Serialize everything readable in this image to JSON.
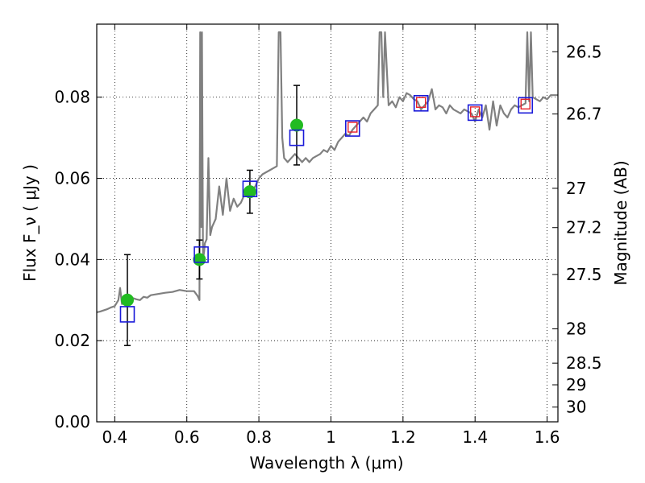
{
  "chart_data": {
    "type": "scatter",
    "xlabel": "Wavelength λ (μm)",
    "ylabel": "Flux F_ν ( μJy )",
    "ylabel_right": "Magnitude (AB)",
    "xlim": [
      0.35,
      1.63
    ],
    "ylim": [
      0.0,
      0.098
    ],
    "grid": true,
    "x_ticks": [
      0.4,
      0.6,
      0.8,
      1.0,
      1.2,
      1.4,
      1.6
    ],
    "x_tick_labels": [
      "0.4",
      "0.6",
      "0.8",
      "1",
      "1.2",
      "1.4",
      "1.6"
    ],
    "y_ticks": [
      0.0,
      0.02,
      0.04,
      0.06,
      0.08
    ],
    "y_tick_labels": [
      "0.00",
      "0.02",
      "0.04",
      "0.06",
      "0.08"
    ],
    "mag_ticks": [
      26.5,
      26.7,
      27,
      27.2,
      27.5,
      28,
      28.5,
      29,
      30
    ],
    "mag_tick_labels": [
      "26.5",
      "26.7",
      "27",
      "27.2",
      "27.5",
      "28",
      "28.5",
      "29",
      "30"
    ],
    "series": [
      {
        "kind": "observed",
        "marker": "circle",
        "color": "#22bb22",
        "x": [
          0.435,
          0.635,
          0.775,
          0.905
        ],
        "y": [
          0.03,
          0.04,
          0.0567,
          0.0731
        ],
        "yerr": [
          0.0112,
          0.0048,
          0.0053,
          0.0098
        ]
      },
      {
        "kind": "model_photometry",
        "marker": "open-square",
        "color": "#1a1ad9",
        "x": [
          0.435,
          0.64,
          0.775,
          0.905,
          1.06,
          1.25,
          1.4,
          1.54
        ],
        "y": [
          0.0265,
          0.0412,
          0.0574,
          0.07,
          0.0723,
          0.0785,
          0.0762,
          0.078
        ]
      },
      {
        "kind": "model_photometry_nir",
        "marker": "open-square-small",
        "color": "#e8202a",
        "x": [
          1.06,
          1.25,
          1.4,
          1.54
        ],
        "y": [
          0.0726,
          0.0787,
          0.0764,
          0.0783
        ]
      },
      {
        "kind": "template_spectrum",
        "marker": "line",
        "color": "#808080",
        "x": [
          0.35,
          0.36,
          0.37,
          0.38,
          0.39,
          0.4,
          0.41,
          0.415,
          0.42,
          0.425,
          0.43,
          0.44,
          0.45,
          0.46,
          0.47,
          0.48,
          0.49,
          0.5,
          0.52,
          0.54,
          0.56,
          0.58,
          0.6,
          0.62,
          0.63,
          0.635,
          0.637,
          0.64,
          0.642,
          0.645,
          0.648,
          0.65,
          0.655,
          0.66,
          0.665,
          0.67,
          0.68,
          0.69,
          0.7,
          0.71,
          0.72,
          0.73,
          0.74,
          0.75,
          0.76,
          0.77,
          0.78,
          0.79,
          0.8,
          0.81,
          0.82,
          0.83,
          0.84,
          0.85,
          0.855,
          0.86,
          0.865,
          0.87,
          0.88,
          0.89,
          0.9,
          0.91,
          0.92,
          0.93,
          0.94,
          0.95,
          0.96,
          0.97,
          0.98,
          0.99,
          1.0,
          1.01,
          1.02,
          1.03,
          1.04,
          1.05,
          1.06,
          1.07,
          1.08,
          1.09,
          1.1,
          1.11,
          1.12,
          1.13,
          1.135,
          1.14,
          1.145,
          1.15,
          1.16,
          1.17,
          1.18,
          1.19,
          1.2,
          1.21,
          1.22,
          1.23,
          1.24,
          1.25,
          1.26,
          1.27,
          1.28,
          1.29,
          1.3,
          1.31,
          1.32,
          1.33,
          1.34,
          1.35,
          1.36,
          1.37,
          1.38,
          1.39,
          1.4,
          1.41,
          1.42,
          1.43,
          1.44,
          1.45,
          1.46,
          1.47,
          1.48,
          1.49,
          1.5,
          1.51,
          1.52,
          1.53,
          1.54,
          1.545,
          1.55,
          1.555,
          1.56,
          1.57,
          1.58,
          1.59,
          1.6,
          1.61,
          1.62,
          1.63
        ],
        "y": [
          0.027,
          0.0272,
          0.0275,
          0.0278,
          0.0282,
          0.0285,
          0.03,
          0.033,
          0.029,
          0.0295,
          0.03,
          0.0295,
          0.0305,
          0.0302,
          0.03,
          0.0308,
          0.0306,
          0.0312,
          0.0315,
          0.0318,
          0.032,
          0.0325,
          0.0322,
          0.0322,
          0.031,
          0.03,
          0.096,
          0.048,
          0.096,
          0.04,
          0.042,
          0.044,
          0.045,
          0.065,
          0.046,
          0.048,
          0.05,
          0.058,
          0.051,
          0.06,
          0.052,
          0.055,
          0.053,
          0.054,
          0.056,
          0.057,
          0.057,
          0.058,
          0.06,
          0.061,
          0.0615,
          0.062,
          0.0625,
          0.063,
          0.096,
          0.096,
          0.07,
          0.065,
          0.064,
          0.065,
          0.066,
          0.065,
          0.064,
          0.065,
          0.064,
          0.065,
          0.0655,
          0.066,
          0.067,
          0.0665,
          0.068,
          0.067,
          0.069,
          0.07,
          0.071,
          0.0705,
          0.072,
          0.073,
          0.074,
          0.075,
          0.074,
          0.076,
          0.077,
          0.078,
          0.096,
          0.096,
          0.08,
          0.096,
          0.078,
          0.079,
          0.0775,
          0.08,
          0.079,
          0.081,
          0.0805,
          0.0795,
          0.079,
          0.077,
          0.078,
          0.079,
          0.082,
          0.077,
          0.078,
          0.0775,
          0.076,
          0.078,
          0.077,
          0.0765,
          0.076,
          0.077,
          0.0765,
          0.076,
          0.074,
          0.077,
          0.075,
          0.078,
          0.072,
          0.079,
          0.073,
          0.078,
          0.076,
          0.075,
          0.077,
          0.078,
          0.0775,
          0.078,
          0.0785,
          0.096,
          0.079,
          0.096,
          0.08,
          0.0795,
          0.079,
          0.08,
          0.0795,
          0.0805,
          0.0805,
          0.0805
        ]
      }
    ]
  }
}
